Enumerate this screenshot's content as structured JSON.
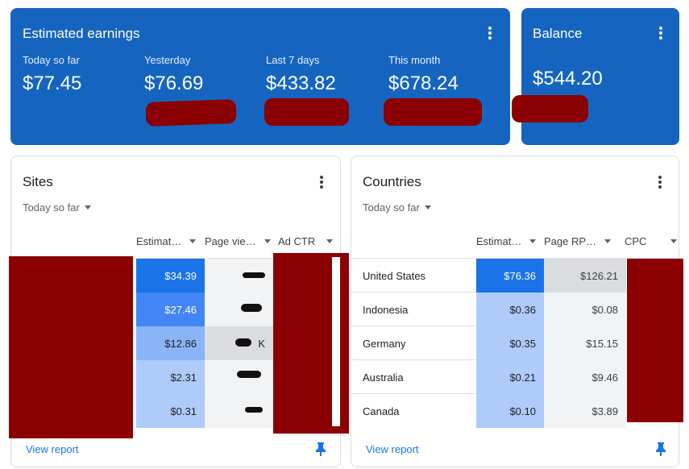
{
  "earnings": {
    "title": "Estimated earnings",
    "metrics": [
      {
        "label": "Today so far",
        "value": "$77.45"
      },
      {
        "label": "Yesterday",
        "value": "$76.69"
      },
      {
        "label": "Last 7 days",
        "value": "$433.82"
      },
      {
        "label": "This month",
        "value": "$678.24"
      }
    ]
  },
  "balance": {
    "title": "Balance",
    "value": "$544.20"
  },
  "sites": {
    "title": "Sites",
    "period": "Today so far",
    "columns": [
      "Estimat…",
      "Page vie…",
      "Ad CTR"
    ],
    "rows": [
      {
        "earnings": "$34.39",
        "earnings_shade": "#1a73e8"
      },
      {
        "earnings": "$27.46",
        "earnings_shade": "#4285f4"
      },
      {
        "earnings": "$12.86",
        "earnings_shade": "#8ab4f8",
        "pageviews": "K"
      },
      {
        "earnings": "$2.31",
        "earnings_shade": "#aecbfa"
      },
      {
        "earnings": "$0.31",
        "earnings_shade": "#aecbfa"
      }
    ],
    "link": "View report"
  },
  "countries": {
    "title": "Countries",
    "period": "Today so far",
    "columns": [
      "Estimat…",
      "Page RP…",
      "CPC"
    ],
    "rows": [
      {
        "country": "United States",
        "earnings": "$76.36",
        "rpm": "$126.21",
        "earnings_shade": "#1a73e8",
        "rpm_shade": "#dadce0"
      },
      {
        "country": "Indonesia",
        "earnings": "$0.36",
        "rpm": "$0.08",
        "earnings_shade": "#aecbfa",
        "rpm_shade": "#f1f3f4"
      },
      {
        "country": "Germany",
        "earnings": "$0.35",
        "rpm": "$15.15",
        "earnings_shade": "#aecbfa",
        "rpm_shade": "#f1f3f4"
      },
      {
        "country": "Australia",
        "earnings": "$0.21",
        "rpm": "$9.46",
        "earnings_shade": "#aecbfa",
        "rpm_shade": "#f1f3f4"
      },
      {
        "country": "Canada",
        "earnings": "$0.10",
        "rpm": "$3.89",
        "earnings_shade": "#aecbfa",
        "rpm_shade": "#f1f3f4"
      }
    ],
    "link": "View report"
  },
  "colors": {
    "brand_blue": "#1565c0",
    "redaction": "#8b0000",
    "link": "#1a73e8"
  },
  "icons": [
    "more-vert-icon",
    "dropdown-caret-icon",
    "pin-icon"
  ]
}
